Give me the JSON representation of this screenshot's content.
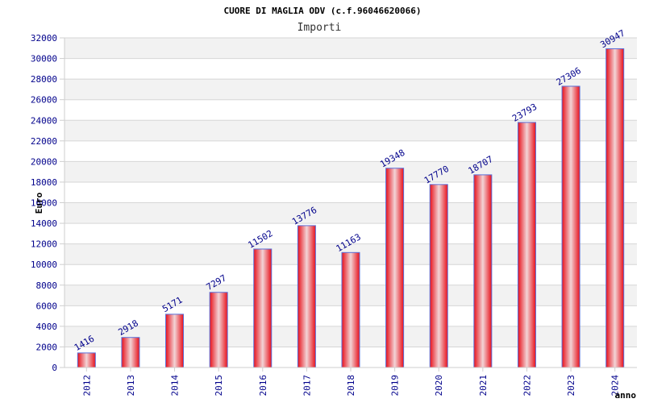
{
  "chart_data": {
    "type": "bar",
    "title": "CUORE DI MAGLIA ODV (c.f.96046620066)",
    "subtitle": "Importi",
    "ylabel": "Euro",
    "xlabel": "anno",
    "categories": [
      "2012",
      "2013",
      "2014",
      "2015",
      "2016",
      "2017",
      "2018",
      "2019",
      "2020",
      "2021",
      "2022",
      "2023",
      "2024"
    ],
    "values": [
      1416,
      2918,
      5171,
      7297,
      11502,
      13776,
      11163,
      19348,
      17770,
      18707,
      23793,
      27306,
      30947
    ],
    "ylim": [
      0,
      32000
    ],
    "yticks": [
      0,
      2000,
      4000,
      6000,
      8000,
      10000,
      12000,
      14000,
      16000,
      18000,
      20000,
      22000,
      24000,
      26000,
      28000,
      30000,
      32000
    ],
    "grid": true,
    "colors": {
      "bar_edge": "#e8101a",
      "bar_center": "#f2d4d6",
      "bar_border": "#5a6fd8",
      "band": "#f2f2f2",
      "grid": "#d6d6d6",
      "axis": "#cfcfcf",
      "tick_text": "#00008b",
      "label_text": "#000000"
    }
  }
}
